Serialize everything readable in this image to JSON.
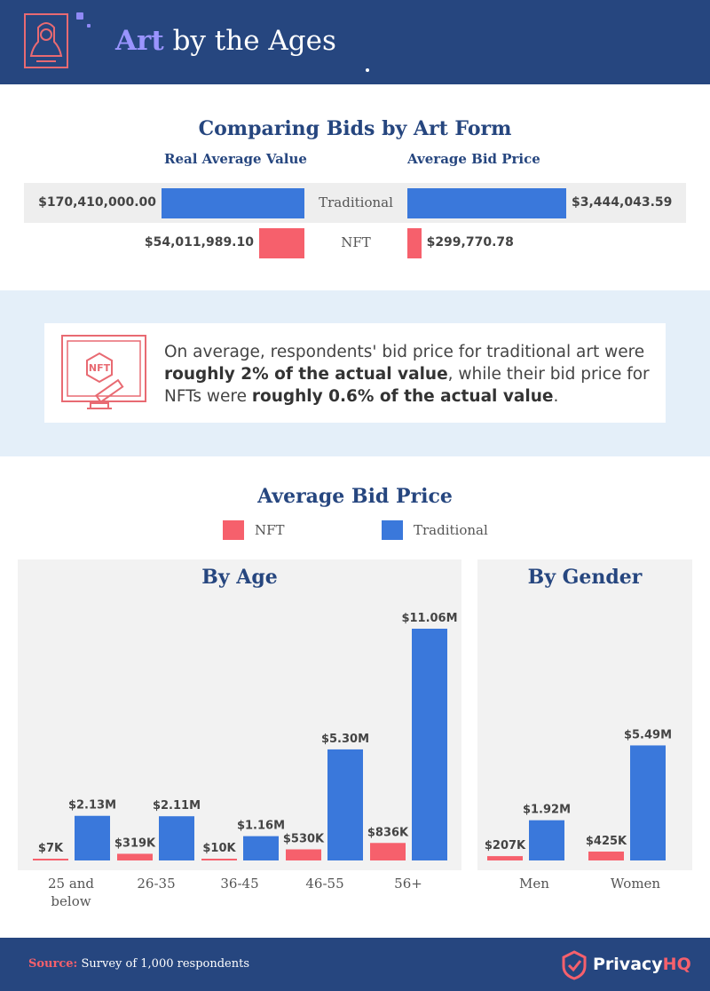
{
  "header": {
    "title_accent": "Art",
    "title_rest": " by the Ages",
    "logo_icon": "portrait-frame-icon"
  },
  "comparison": {
    "title": "Comparing Bids by Art Form",
    "col_left": "Real Average Value",
    "col_right": "Average Bid Price",
    "rows": [
      {
        "category": "Traditional",
        "real_label": "$170,410,000.00",
        "bid_label": "$3,444,043.59"
      },
      {
        "category": "NFT",
        "real_label": "$54,011,989.10",
        "bid_label": "$299,770.78"
      }
    ]
  },
  "callout": {
    "icon": "nft-auction-gavel-icon",
    "text_1": "On average, respondents' bid price for traditional art were ",
    "bold_1": "roughly 2% of the actual value",
    "text_2": ", while their bid price for NFTs were ",
    "bold_2": "roughly 0.6% of the actual value",
    "text_3": "."
  },
  "bid_section": {
    "title": "Average Bid Price",
    "legend": [
      {
        "name": "NFT",
        "color": "#f6606c"
      },
      {
        "name": "Traditional",
        "color": "#3a78db"
      }
    ]
  },
  "chart_data": [
    {
      "type": "bar",
      "title": "Comparing Bids by Art Form",
      "categories": [
        "Traditional",
        "NFT"
      ],
      "series": [
        {
          "name": "Real Average Value",
          "values": [
            170410000.0,
            54011989.1
          ],
          "labels": [
            "$170,410,000.00",
            "$54,011,989.10"
          ]
        },
        {
          "name": "Average Bid Price",
          "values": [
            3444043.59,
            299770.78
          ],
          "labels": [
            "$3,444,043.59",
            "$299,770.78"
          ]
        }
      ],
      "orientation": "horizontal-butterfly"
    },
    {
      "type": "bar",
      "title": "By Age",
      "categories": [
        "25 and below",
        "26-35",
        "36-45",
        "46-55",
        "56+"
      ],
      "series": [
        {
          "name": "NFT",
          "color": "#f6606c",
          "values": [
            7000,
            319000,
            10000,
            530000,
            836000
          ],
          "labels": [
            "$7K",
            "$319K",
            "$10K",
            "$530K",
            "$836K"
          ]
        },
        {
          "name": "Traditional",
          "color": "#3a78db",
          "values": [
            2130000,
            2110000,
            1160000,
            5300000,
            11060000
          ],
          "labels": [
            "$2.13M",
            "$2.11M",
            "$1.16M",
            "$5.30M",
            "$11.06M"
          ]
        }
      ],
      "ylim": [
        0,
        11060000
      ]
    },
    {
      "type": "bar",
      "title": "By Gender",
      "categories": [
        "Men",
        "Women"
      ],
      "series": [
        {
          "name": "NFT",
          "color": "#f6606c",
          "values": [
            207000,
            425000
          ],
          "labels": [
            "$207K",
            "$425K"
          ]
        },
        {
          "name": "Traditional",
          "color": "#3a78db",
          "values": [
            1920000,
            5490000
          ],
          "labels": [
            "$1.92M",
            "$5.49M"
          ]
        }
      ],
      "ylim": [
        0,
        11060000
      ]
    }
  ],
  "footer": {
    "source_label": "Source:",
    "source_text": " Survey of 1,000 respondents",
    "brand_main": "Privacy",
    "brand_accent": "HQ",
    "brand_icon": "shield-check-icon"
  }
}
